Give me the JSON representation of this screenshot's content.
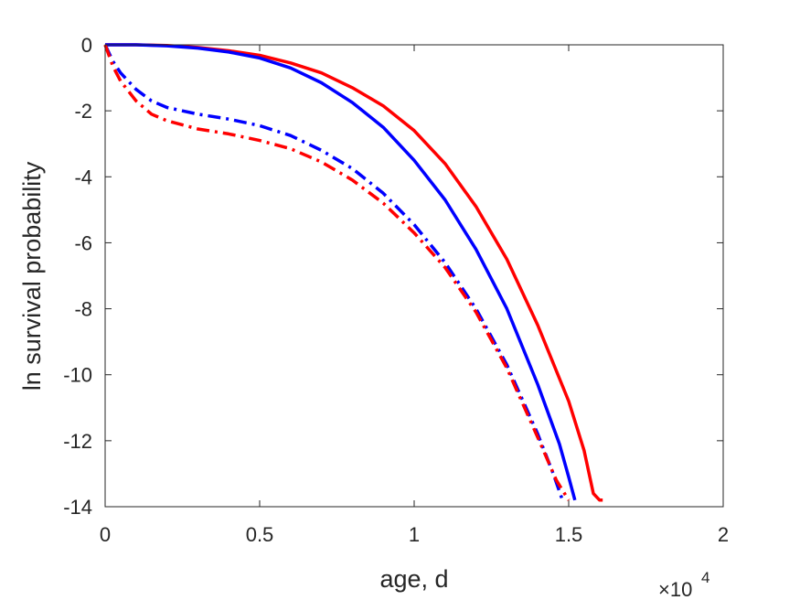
{
  "chart_data": {
    "type": "line",
    "title": "",
    "xlabel": "age, d",
    "ylabel": "ln survival probability",
    "x_exponent_label": "×10",
    "x_exponent_power": "4",
    "xlim": [
      0,
      20000
    ],
    "ylim": [
      -14,
      0
    ],
    "x_ticks": [
      0,
      5000,
      10000,
      15000,
      20000
    ],
    "x_tick_labels": [
      "0",
      "0.5",
      "1",
      "1.5",
      "2"
    ],
    "y_ticks": [
      0,
      -2,
      -4,
      -6,
      -8,
      -10,
      -12,
      -14
    ],
    "y_tick_labels": [
      "0",
      "-2",
      "-4",
      "-6",
      "-8",
      "-10",
      "-12",
      "-14"
    ],
    "grid": false,
    "legend": "none",
    "series": [
      {
        "color": "#ff0000",
        "style": "solid",
        "x": [
          0,
          1000,
          2000,
          3000,
          4000,
          5000,
          6000,
          7000,
          8000,
          9000,
          10000,
          11000,
          12000,
          13000,
          14000,
          15000,
          15500,
          15800,
          16000,
          16100
        ],
        "y": [
          0,
          0,
          -0.02,
          -0.08,
          -0.18,
          -0.32,
          -0.55,
          -0.85,
          -1.3,
          -1.85,
          -2.6,
          -3.6,
          -4.9,
          -6.5,
          -8.5,
          -10.8,
          -12.3,
          -13.6,
          -13.8,
          -13.8
        ]
      },
      {
        "color": "#0000ff",
        "style": "solid",
        "x": [
          0,
          1000,
          2000,
          3000,
          4000,
          5000,
          6000,
          7000,
          8000,
          9000,
          10000,
          11000,
          12000,
          13000,
          14000,
          14700,
          15000,
          15200
        ],
        "y": [
          0,
          0,
          -0.03,
          -0.1,
          -0.22,
          -0.4,
          -0.7,
          -1.15,
          -1.75,
          -2.5,
          -3.5,
          -4.7,
          -6.2,
          -8.0,
          -10.3,
          -12.1,
          -13.1,
          -13.8
        ]
      },
      {
        "color": "#0000ff",
        "style": "dashdot",
        "x": [
          0,
          250,
          500,
          1000,
          1500,
          2000,
          3000,
          4000,
          5000,
          6000,
          7000,
          8000,
          9000,
          10000,
          11000,
          12000,
          13000,
          14000,
          14500,
          14800
        ],
        "y": [
          0,
          -0.5,
          -0.85,
          -1.35,
          -1.7,
          -1.9,
          -2.1,
          -2.25,
          -2.45,
          -2.75,
          -3.2,
          -3.75,
          -4.5,
          -5.45,
          -6.6,
          -8.0,
          -9.7,
          -11.8,
          -13.0,
          -13.8
        ]
      },
      {
        "color": "#ff0000",
        "style": "dashdot",
        "x": [
          0,
          250,
          500,
          1000,
          1500,
          2000,
          3000,
          4000,
          5000,
          6000,
          7000,
          8000,
          9000,
          10000,
          11000,
          12000,
          13000,
          14000,
          14600,
          15000
        ],
        "y": [
          0,
          -0.65,
          -1.1,
          -1.7,
          -2.1,
          -2.3,
          -2.55,
          -2.7,
          -2.9,
          -3.15,
          -3.55,
          -4.1,
          -4.8,
          -5.7,
          -6.75,
          -8.1,
          -9.8,
          -11.9,
          -13.2,
          -13.8
        ]
      }
    ]
  }
}
